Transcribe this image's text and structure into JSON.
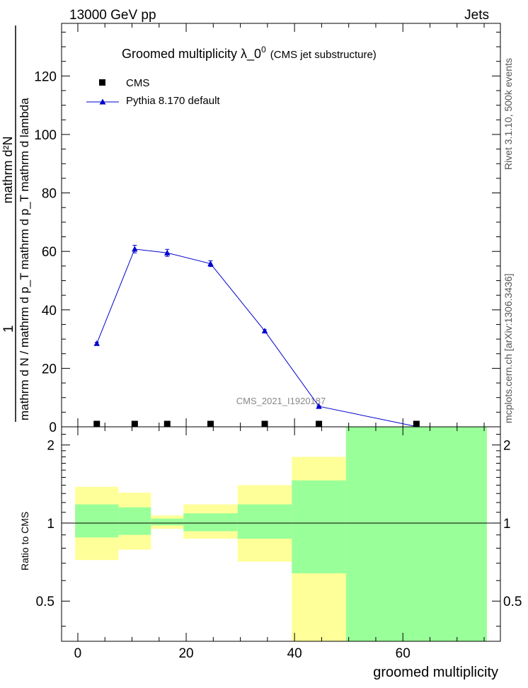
{
  "header": {
    "left": "13000 GeV pp",
    "right": "Jets"
  },
  "side": {
    "rivet": "Rivet 3.1.10,  500k events",
    "mcplots": "mcplots.cern.ch [arXiv:1306.3436]"
  },
  "colors": {
    "mc": "#0000cc",
    "data": "#000000",
    "band_inner": "#99ff99",
    "band_outer": "#ffff99"
  },
  "chart_data": [
    {
      "type": "line",
      "title": "Groomed multiplicity  λ_0",
      "title_sup": "0",
      "title_suffix": "(CMS jet substructure)",
      "analysis_id": "CMS_2021_I1920187",
      "ylabel_top": "1",
      "ylabel_num": "mathrm d²N",
      "ylabel_den": "mathrm d N / mathrm d p_T mathrm d p_T mathrm d lambda",
      "xlim": [
        -3,
        78
      ],
      "ylim": [
        0,
        138
      ],
      "y_ticks": [
        0,
        20,
        40,
        60,
        80,
        100,
        120
      ],
      "legend_placement": "top-left",
      "series": [
        {
          "name": "CMS",
          "marker": "square",
          "x": [
            3.5,
            10.5,
            16.5,
            24.5,
            34.5,
            44.5,
            62.5
          ],
          "y": [
            0.3,
            0.3,
            0.5,
            0.3,
            0.3,
            0.2,
            0.1
          ]
        },
        {
          "name": "Pythia 8.170 default",
          "marker": "triangle",
          "x": [
            3.5,
            10.5,
            16.5,
            24.5,
            34.5,
            44.5,
            62.5
          ],
          "y": [
            28.5,
            60.8,
            59.5,
            55.8,
            32.8,
            7.0,
            0.1
          ],
          "yerr": [
            0.4,
            1.3,
            1.2,
            1.0,
            0.4,
            0.2,
            0.05
          ]
        }
      ]
    },
    {
      "type": "area",
      "ylabel": "Ratio to CMS",
      "xlabel": "groomed multiplicity",
      "xlim": [
        -3,
        78
      ],
      "ylim": [
        0.35,
        2.35
      ],
      "scale": "log",
      "x_ticks": [
        0,
        20,
        40,
        60
      ],
      "y_ticks": [
        0.5,
        1,
        2
      ],
      "reference": 1,
      "bins": [
        {
          "lo": -0.5,
          "hi": 7.5,
          "inner": [
            0.88,
            1.18
          ],
          "outer": [
            0.72,
            1.38
          ]
        },
        {
          "lo": 7.5,
          "hi": 13.5,
          "inner": [
            0.9,
            1.15
          ],
          "outer": [
            0.79,
            1.31
          ]
        },
        {
          "lo": 13.5,
          "hi": 19.5,
          "inner": [
            0.98,
            1.04
          ],
          "outer": [
            0.95,
            1.07
          ]
        },
        {
          "lo": 19.5,
          "hi": 29.5,
          "inner": [
            0.93,
            1.09
          ],
          "outer": [
            0.87,
            1.18
          ]
        },
        {
          "lo": 29.5,
          "hi": 39.5,
          "inner": [
            0.87,
            1.18
          ],
          "outer": [
            0.71,
            1.4
          ]
        },
        {
          "lo": 39.5,
          "hi": 49.5,
          "inner": [
            0.64,
            1.46
          ],
          "outer": [
            0.35,
            1.8
          ]
        },
        {
          "lo": 49.5,
          "hi": 75.5,
          "inner": [
            0.35,
            2.35
          ],
          "outer": [
            0.35,
            2.35
          ]
        }
      ]
    }
  ]
}
